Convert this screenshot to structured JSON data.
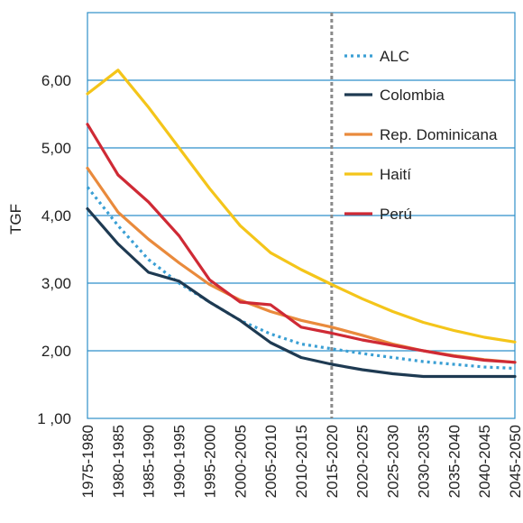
{
  "chart_data": {
    "type": "line",
    "ylabel": "TGF",
    "xlabel": "",
    "ylim": [
      1,
      7
    ],
    "y_ticks": [
      "1 ,00",
      "2,00",
      "3,00",
      "4,00",
      "5,00",
      "6,00"
    ],
    "y_tick_values": [
      1,
      2,
      3,
      4,
      5,
      6
    ],
    "categories": [
      "1975-1980",
      "1980-1985",
      "1985-1990",
      "1990-1995",
      "1995-2000",
      "2000-2005",
      "2005-2010",
      "2010-2015",
      "2015-2020",
      "2020-2025",
      "2025-2030",
      "2030-2035",
      "2035-2040",
      "2040-2045",
      "2045-2050"
    ],
    "vertical_reference": {
      "category": "2015-2020",
      "style": "dotted",
      "color": "#8a8a8a"
    },
    "grid": "horizontal",
    "legend_position": "right",
    "series": [
      {
        "name": "ALC",
        "color": "#3a9fd4",
        "dash": true,
        "values": [
          4.42,
          3.85,
          3.35,
          3.0,
          2.72,
          2.45,
          2.25,
          2.1,
          2.03,
          1.96,
          1.9,
          1.84,
          1.8,
          1.76,
          1.74
        ]
      },
      {
        "name": "Colombia",
        "color": "#1e3a52",
        "dash": false,
        "values": [
          4.1,
          3.58,
          3.16,
          3.03,
          2.72,
          2.45,
          2.12,
          1.9,
          1.8,
          1.72,
          1.66,
          1.62,
          1.62,
          1.62,
          1.62
        ]
      },
      {
        "name": "Rep. Dominicana",
        "color": "#e98a3c",
        "dash": false,
        "values": [
          4.7,
          4.05,
          3.65,
          3.3,
          2.98,
          2.75,
          2.58,
          2.45,
          2.35,
          2.23,
          2.1,
          2.0,
          1.93,
          1.87,
          1.83
        ]
      },
      {
        "name": "Haití",
        "color": "#f4c51a",
        "dash": false,
        "values": [
          5.8,
          6.15,
          5.6,
          5.0,
          4.4,
          3.85,
          3.45,
          3.2,
          2.98,
          2.77,
          2.58,
          2.42,
          2.3,
          2.2,
          2.13
        ]
      },
      {
        "name": "Perú",
        "color": "#cf2a35",
        "dash": false,
        "values": [
          5.35,
          4.6,
          4.2,
          3.7,
          3.05,
          2.72,
          2.68,
          2.35,
          2.26,
          2.16,
          2.08,
          2.0,
          1.92,
          1.86,
          1.83
        ]
      }
    ]
  }
}
